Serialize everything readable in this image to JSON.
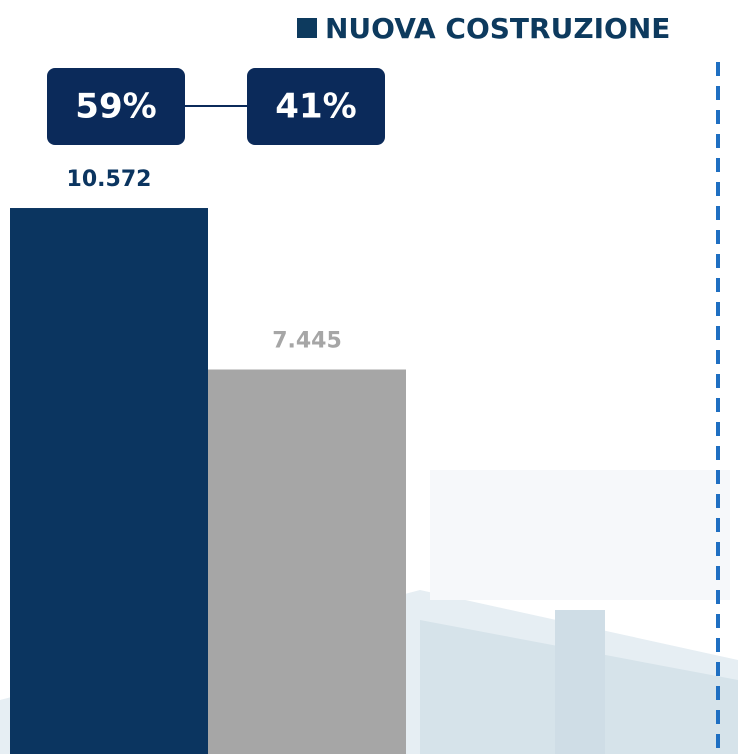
{
  "chart_data": {
    "type": "bar",
    "legend": {
      "label": "NUOVA COSTRUZIONE",
      "color": "#0d3a5e"
    },
    "categories": [
      null,
      null
    ],
    "values": [
      10572,
      7445
    ],
    "value_labels": [
      "10.572",
      "7.445"
    ],
    "colors": [
      "#0b3560",
      "#a6a6a6"
    ],
    "annotations": [
      "59%",
      "41%"
    ],
    "ylim": [
      0,
      14600
    ]
  }
}
